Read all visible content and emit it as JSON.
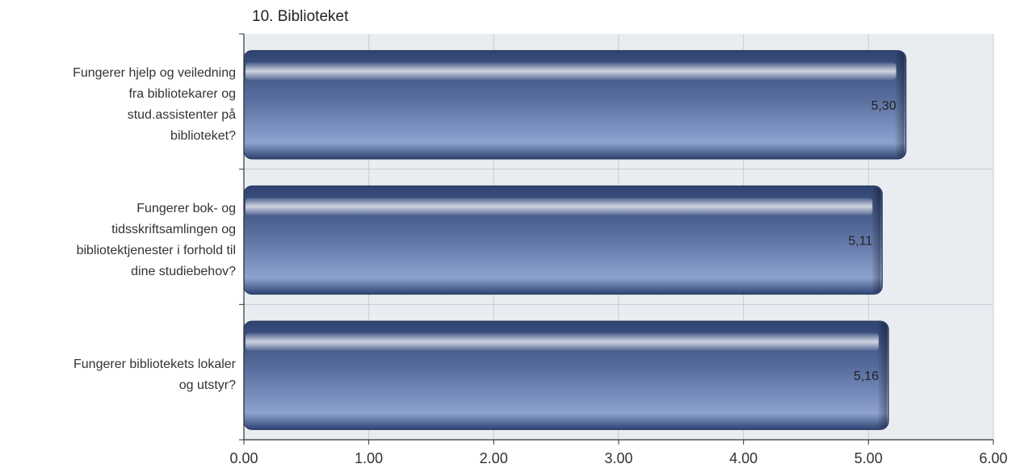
{
  "chart_data": {
    "type": "bar",
    "orientation": "horizontal",
    "title": "10. Biblioteket",
    "categories": [
      "Fungerer hjelp og veiledning fra bibliotekarer og stud.assistenter på biblioteket?",
      "Fungerer bok- og tidsskriftsamlingen og bibliotektjenester i forhold til dine studiebehov?",
      "Fungerer bibliotekets lokaler og utstyr?"
    ],
    "category_lines": [
      [
        "Fungerer hjelp og veiledning",
        "fra bibliotekarer og",
        "stud.assistenter på",
        "biblioteket?"
      ],
      [
        "Fungerer bok- og",
        "tidsskriftsamlingen og",
        "bibliotektjenester i forhold til",
        "dine studiebehov?"
      ],
      [
        "Fungerer bibliotekets lokaler",
        "og utstyr?"
      ]
    ],
    "values": [
      5.3,
      5.11,
      5.16
    ],
    "data_labels": [
      "5,30",
      "5,11",
      "5,16"
    ],
    "xlim": [
      0,
      6
    ],
    "x_ticks": [
      0,
      1,
      2,
      3,
      4,
      5,
      6
    ],
    "x_tick_labels": [
      "0.00",
      "1.00",
      "2.00",
      "3.00",
      "4.00",
      "5.00",
      "6.00"
    ],
    "grid": true,
    "xlabel": "",
    "ylabel": "",
    "colors": {
      "bar_light": "#8ea2d0",
      "bar_dark": "#2f4372",
      "bar_highlight": "#c9d0de",
      "plot_background": "#e9ecf1",
      "gridline": "#c8ccd2",
      "axis": "#333333"
    }
  }
}
